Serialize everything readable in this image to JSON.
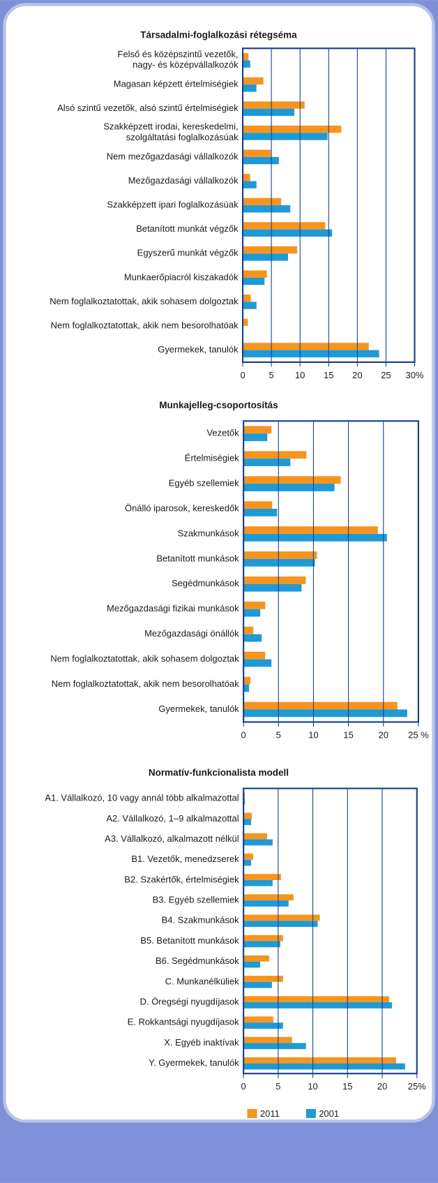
{
  "charts": [
    {
      "chart_data": {
        "type": "bar",
        "orientation": "horizontal",
        "title": "Társadalmi-foglalkozási rétegséma",
        "categories": [
          "Felső és középszintű vezetők,\nnagy- és középvállalkozók",
          "Magasan képzett értelmiségiek",
          "Alsó szintű vezetők, alsó szintű értelmiségiek",
          "Szakképzett irodai, kereskedelmi,\nszolgáltatási foglalkozásúak",
          "Nem mezőgazdasági vállalkozók",
          "Mezőgazdasági vállalkozók",
          "Szakképzett ipari foglalkozásúak",
          "Betanított munkát végzők",
          "Egyszerű munkát végzők",
          "Munkaerőpiacról kiszakadók",
          "Nem foglalkoztatottak, akik sohasem dolgoztak",
          "Nem foglalkoztatottak, akik nem besorolhatóak",
          "Gyermekek, tanulók"
        ],
        "series": [
          {
            "color": "#f7941d",
            "values": [
              1.0,
              3.6,
              10.8,
              17.2,
              4.9,
              1.3,
              6.7,
              14.4,
              9.5,
              4.2,
              1.4,
              0.9,
              22.0
            ]
          },
          {
            "color": "#1e9ad6",
            "values": [
              1.3,
              2.4,
              9.0,
              14.8,
              6.3,
              2.4,
              8.3,
              15.6,
              7.9,
              3.8,
              2.4,
              0,
              23.8
            ]
          }
        ],
        "xlim": [
          0,
          30
        ],
        "xticks": [
          0,
          5,
          10,
          15,
          20,
          25,
          {
            "value": 30,
            "label": "30%"
          }
        ],
        "grid": true
      }
    },
    {
      "chart_data": {
        "type": "bar",
        "orientation": "horizontal",
        "title": "Munkajelleg-csoportosítás",
        "categories": [
          "Vezetők",
          "Értelmiségiek",
          "Egyéb szellemiek",
          "Önálló iparosok, kereskedők",
          "Szakmunkások",
          "Betanított munkások",
          "Segédmunkások",
          "Mezőgazdasági fizikai munkások",
          "Mezőgazdasági önállók",
          "Nem foglalkoztatottak, akik sohasem dolgoztak",
          "Nem foglalkoztatottak, akik nem besorolhatóak",
          "Gyermekek, tanulók"
        ],
        "series": [
          {
            "color": "#f7941d",
            "values": [
              4.0,
              9.0,
              13.9,
              4.1,
              19.2,
              10.5,
              8.9,
              3.1,
              1.4,
              3.1,
              1.0,
              22.0
            ]
          },
          {
            "color": "#1e9ad6",
            "values": [
              3.4,
              6.7,
              13.0,
              4.8,
              20.5,
              10.2,
              8.3,
              2.4,
              2.6,
              4.0,
              0.8,
              23.4
            ]
          }
        ],
        "xlim": [
          0,
          25
        ],
        "xticks": [
          0,
          5,
          10,
          15,
          20,
          {
            "value": 25,
            "label": "25 %"
          }
        ],
        "grid": true
      }
    },
    {
      "chart_data": {
        "type": "bar",
        "orientation": "horizontal",
        "title": "Normatív-funkcionalista modell",
        "categories": [
          "A1. Vállalkozó, 10 vagy annál több alkalmazottal",
          "A2. Vállalkozó, 1–9 alkalmazottal",
          "A3. Vállalkozó, alkalmazott nélkül",
          "B1. Vezetők, menedzserek",
          "B2. Szakértők, értelmiségiek",
          "B3. Egyéb szellemiek",
          "B4. Szakmunkások",
          "B5. Betanított munkások",
          "B6. Segédmunkások",
          "C. Munkanélküliek",
          "D. Öregségi nyugdíjasok",
          "E. Rokkantsági nyugdíjasok",
          "X. Egyéb inaktívak",
          "Y. Gyermekek, tanulók"
        ],
        "series": [
          {
            "name": "2011",
            "color": "#f7941d",
            "values": [
              0.2,
              1.2,
              3.4,
              1.4,
              5.4,
              7.2,
              11.0,
              5.7,
              3.7,
              5.7,
              21.0,
              4.3,
              7.0,
              22.0
            ]
          },
          {
            "name": "2001",
            "color": "#1e9ad6",
            "values": [
              0.2,
              1.1,
              4.2,
              1.1,
              4.2,
              6.5,
              10.7,
              5.3,
              2.4,
              4.1,
              21.4,
              5.7,
              9.0,
              23.3
            ]
          }
        ],
        "xlim": [
          0,
          25
        ],
        "xticks": [
          0,
          5,
          10,
          15,
          20,
          {
            "value": 25,
            "label": "25%"
          }
        ],
        "grid": true
      }
    }
  ]
}
